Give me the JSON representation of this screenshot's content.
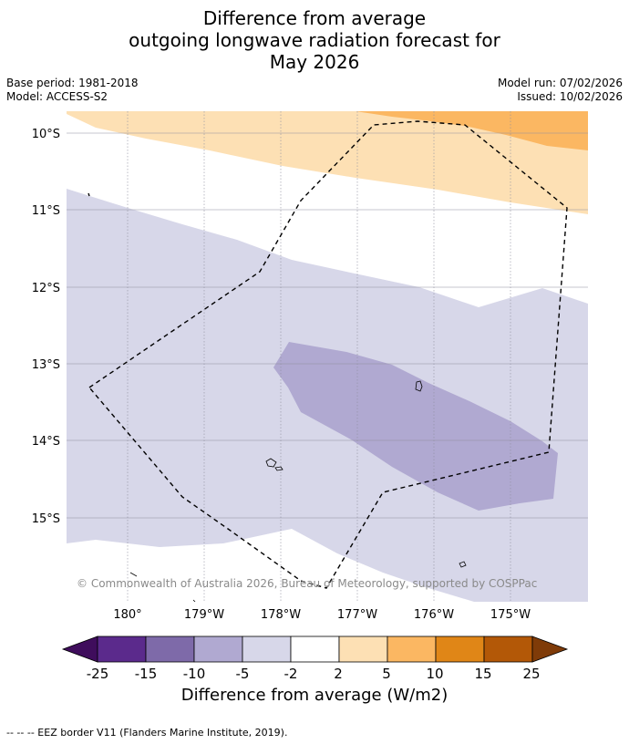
{
  "title": {
    "line1": "Difference from average",
    "line2": "outgoing longwave radiation forecast for",
    "line3": "May 2026"
  },
  "meta": {
    "base_period": "Base period: 1981-2018",
    "model": "Model: ACCESS-S2",
    "model_run": "Model run: 07/02/2026",
    "issued": "Issued: 10/02/2026"
  },
  "map": {
    "lat_labels": [
      "10°S",
      "11°S",
      "12°S",
      "13°S",
      "14°S",
      "15°S"
    ],
    "lon_labels": [
      "180°",
      "179°W",
      "178°W",
      "177°W",
      "176°W",
      "175°W"
    ],
    "copyright": "© Commonwealth of Australia 2026, Bureau of Meteorology, supported by COSPPac"
  },
  "colorbar": {
    "ticks": [
      "-25",
      "-15",
      "-10",
      "-5",
      "-2",
      "2",
      "5",
      "10",
      "15",
      "25"
    ],
    "colors": [
      "#3f0d5c",
      "#5b2a8c",
      "#7e6aa9",
      "#b0a9d1",
      "#d7d7e9",
      "#ffffff",
      "#fde0b4",
      "#fbb762",
      "#e08617",
      "#b35807",
      "#7f3b08"
    ],
    "title": "Difference from average (W/m2)"
  },
  "footer": "--  --  -- EEZ border V11 (Flanders Marine Institute, 2019)."
}
